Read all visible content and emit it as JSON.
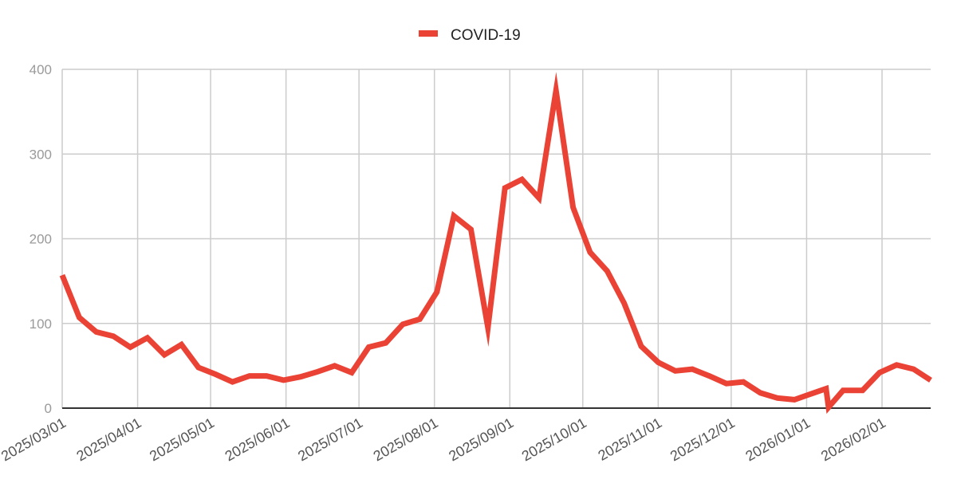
{
  "chart_data": {
    "type": "line",
    "title": "",
    "xlabel": "",
    "ylabel": "",
    "xlim": [
      "2025-03-01",
      "2026-02-21"
    ],
    "ylim": [
      0,
      400
    ],
    "yticks": [
      0,
      100,
      200,
      300,
      400
    ],
    "xticks": [
      "2025/03/01",
      "2025/04/01",
      "2025/05/01",
      "2025/06/01",
      "2025/07/01",
      "2025/08/01",
      "2025/09/01",
      "2025/10/01",
      "2025/11/01",
      "2025/12/01",
      "2026/01/01",
      "2026/02/01"
    ],
    "grid": true,
    "legend_position": "top",
    "series": [
      {
        "name": "COVID-19",
        "color": "#ea4335",
        "points": [
          [
            "2025-03-01",
            157
          ],
          [
            "2025-03-08",
            107
          ],
          [
            "2025-03-15",
            90
          ],
          [
            "2025-03-22",
            85
          ],
          [
            "2025-03-29",
            72
          ],
          [
            "2025-04-05",
            83
          ],
          [
            "2025-04-12",
            63
          ],
          [
            "2025-04-19",
            75
          ],
          [
            "2025-04-26",
            48
          ],
          [
            "2025-05-03",
            40
          ],
          [
            "2025-05-10",
            31
          ],
          [
            "2025-05-17",
            38
          ],
          [
            "2025-05-24",
            38
          ],
          [
            "2025-05-31",
            33
          ],
          [
            "2025-06-07",
            37
          ],
          [
            "2025-06-14",
            43
          ],
          [
            "2025-06-21",
            50
          ],
          [
            "2025-06-28",
            42
          ],
          [
            "2025-07-05",
            72
          ],
          [
            "2025-07-12",
            77
          ],
          [
            "2025-07-19",
            99
          ],
          [
            "2025-07-26",
            105
          ],
          [
            "2025-08-02",
            137
          ],
          [
            "2025-08-09",
            227
          ],
          [
            "2025-08-16",
            211
          ],
          [
            "2025-08-23",
            95
          ],
          [
            "2025-08-30",
            260
          ],
          [
            "2025-09-06",
            270
          ],
          [
            "2025-09-13",
            248
          ],
          [
            "2025-09-20",
            375
          ],
          [
            "2025-09-27",
            237
          ],
          [
            "2025-10-04",
            184
          ],
          [
            "2025-10-11",
            162
          ],
          [
            "2025-10-18",
            124
          ],
          [
            "2025-10-25",
            73
          ],
          [
            "2025-11-01",
            54
          ],
          [
            "2025-11-08",
            44
          ],
          [
            "2025-11-15",
            46
          ],
          [
            "2025-11-22",
            38
          ],
          [
            "2025-11-29",
            29
          ],
          [
            "2025-12-06",
            31
          ],
          [
            "2025-12-13",
            18
          ],
          [
            "2025-12-20",
            12
          ],
          [
            "2025-12-27",
            10
          ],
          [
            "2026-01-03",
            17
          ],
          [
            "2026-01-09",
            23
          ],
          [
            "2026-01-10",
            1
          ],
          [
            "2026-01-16",
            21
          ],
          [
            "2026-01-24",
            21
          ],
          [
            "2026-01-31",
            42
          ],
          [
            "2026-02-07",
            51
          ],
          [
            "2026-02-14",
            46
          ],
          [
            "2026-02-21",
            33
          ]
        ]
      }
    ]
  }
}
